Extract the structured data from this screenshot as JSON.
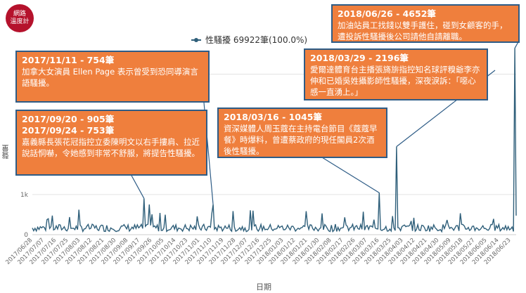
{
  "logo": {
    "line1": "網路",
    "line2": "溫度計"
  },
  "legend": {
    "series_name": "性騷擾 69922筆(100.0%)"
  },
  "annotations": [
    {
      "id": "a1",
      "lines": [
        "2017/11/11 - 754筆"
      ],
      "body": "加拿大女演員 Ellen Page 表示曾受到恐同導演言語騷擾。"
    },
    {
      "id": "a2",
      "lines": [
        "2017/09/20 -  905筆",
        "2017/09/24 -  753筆"
      ],
      "body": "嘉義縣長張花冠指控立委陳明文以右手摟肩、拉近說話恫嚇，令她感到非常不舒服，將提告性騷擾。"
    },
    {
      "id": "a3",
      "lines": [
        "2018/03/16 - 1045筆"
      ],
      "body": "資深媒體人周玉蔻在主持電台節目《蔻蔻早餐》時爆料，曾遭蔡政府的現任閣員2次酒後性騷擾。"
    },
    {
      "id": "a4",
      "lines": [
        "2018/03/29 - 2196筆"
      ],
      "body": "愛爾達體育台主播張旖旂指控知名球評糗爺李亦伸和已婚吳姓攝影師性騷擾，深夜淚訴：「噁心感一直湧上。」"
    },
    {
      "id": "a5",
      "lines": [
        "2018/06/26 - 4652筆"
      ],
      "body": "加油站員工找錢以雙手護住，碰到女顧客的手，遭投訴性騷擾後公司請他自請離職。"
    }
  ],
  "chart_data": {
    "type": "line",
    "title": "",
    "xlabel": "日期",
    "ylabel": "聲量",
    "ylim": [
      0,
      4800
    ],
    "yticks": [
      0,
      1000,
      4000
    ],
    "ytick_labels": [
      "0",
      "1k",
      "4k"
    ],
    "series": [
      {
        "name": "性騷擾 69922筆(100.0%)",
        "color": "#2f5f7a"
      }
    ],
    "x_tick_labels": [
      "2017/06/28",
      "2017/07/07",
      "2017/07/16",
      "2017/07/25",
      "2017/08/03",
      "2017/08/12",
      "2017/08/21",
      "2017/08/30",
      "2017/09/08",
      "2017/09/17",
      "2017/09/26",
      "2017/10/05",
      "2017/10/14",
      "2017/10/23",
      "2017/11/01",
      "2017/11/10",
      "2017/11/19",
      "2017/11/28",
      "2017/12/07",
      "2017/12/16",
      "2017/12/25",
      "2018/01/03",
      "2018/01/12",
      "2018/01/21",
      "2018/01/30",
      "2018/02/08",
      "2018/02/17",
      "2018/02/26",
      "2018/03/07",
      "2018/03/16",
      "2018/03/25",
      "2018/04/03",
      "2018/04/12",
      "2018/04/21",
      "2018/04/30",
      "2018/05/09",
      "2018/05/18",
      "2018/05/27",
      "2018/06/05",
      "2018/06/14",
      "2018/06/23"
    ],
    "x_start": "2017/06/28",
    "x_end": "2018/06/27",
    "baseline": 170,
    "peaks": [
      {
        "date": "2017/09/20",
        "value": 905
      },
      {
        "date": "2017/09/24",
        "value": 753
      },
      {
        "date": "2017/11/11",
        "value": 754
      },
      {
        "date": "2018/03/16",
        "value": 1045
      },
      {
        "date": "2018/03/29",
        "value": 2196
      },
      {
        "date": "2018/06/26",
        "value": 4652
      }
    ]
  }
}
